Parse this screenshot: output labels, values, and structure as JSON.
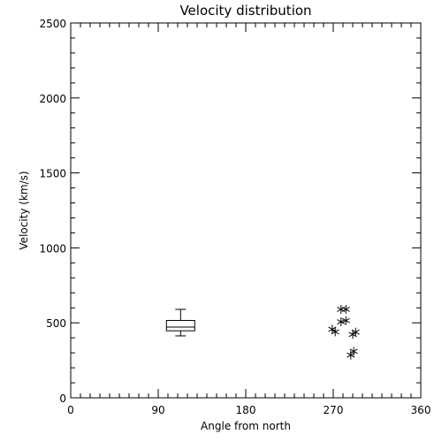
{
  "chart_data": {
    "type": "box+scatter",
    "title": "Velocity distribution",
    "xlabel": "Angle from north",
    "ylabel": "Velocity (km/s)",
    "xlim": [
      0,
      360
    ],
    "ylim": [
      0,
      2500
    ],
    "x_ticks": [
      0,
      90,
      180,
      270,
      360
    ],
    "y_ticks": [
      0,
      500,
      1000,
      1500,
      2000,
      2500
    ],
    "x_minor_step": 10,
    "y_minor_step": 100,
    "grid": false,
    "box": {
      "x": 113,
      "whisker_low": 413,
      "q1": 447,
      "median": 472,
      "q3": 516,
      "whisker_high": 590
    },
    "points": [
      {
        "x": 278,
        "y": 590
      },
      {
        "x": 283,
        "y": 590
      },
      {
        "x": 278,
        "y": 507
      },
      {
        "x": 283,
        "y": 515
      },
      {
        "x": 269,
        "y": 457
      },
      {
        "x": 272,
        "y": 440
      },
      {
        "x": 290,
        "y": 423
      },
      {
        "x": 293,
        "y": 438
      },
      {
        "x": 291,
        "y": 310
      },
      {
        "x": 288,
        "y": 285
      }
    ],
    "marker": "asterisk",
    "color": "#000000"
  }
}
